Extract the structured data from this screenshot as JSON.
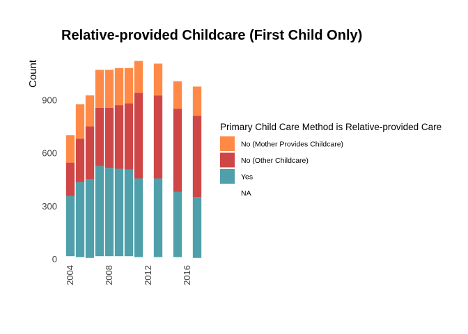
{
  "chart_data": {
    "type": "bar",
    "stacked": true,
    "title": "Relative-provided Childcare (First Child Only)",
    "xlabel": "",
    "ylabel": "Count",
    "x": [
      2004,
      2005,
      2006,
      2007,
      2008,
      2009,
      2010,
      2011,
      2012,
      2013,
      2014,
      2015,
      2016,
      2017
    ],
    "xticks": [
      2004,
      2008,
      2012,
      2016
    ],
    "yticks": [
      0,
      300,
      600,
      900
    ],
    "ylim": [
      0,
      1150
    ],
    "xlim": [
      2003.5,
      2017.5
    ],
    "grid": false,
    "legend_position": "right",
    "legend_title": "Primary Child Care Method is Relative-provided Care",
    "series": [
      {
        "name": "NA",
        "color": "#ffffff",
        "values": [
          15,
          10,
          5,
          15,
          15,
          15,
          15,
          10,
          null,
          10,
          null,
          10,
          null,
          5
        ]
      },
      {
        "name": "Yes",
        "color": "#4fa0ab",
        "values": [
          340,
          425,
          445,
          510,
          500,
          495,
          490,
          445,
          null,
          445,
          null,
          370,
          null,
          345
        ]
      },
      {
        "name": "No (Other Childcare)",
        "color": "#cf4647",
        "values": [
          190,
          245,
          300,
          330,
          340,
          360,
          375,
          485,
          null,
          470,
          null,
          470,
          null,
          460
        ]
      },
      {
        "name": "No (Mother Provides Childcare)",
        "color": "#ff8a47",
        "values": [
          155,
          195,
          175,
          215,
          215,
          210,
          200,
          180,
          null,
          180,
          null,
          155,
          null,
          165
        ]
      }
    ],
    "legend_order": [
      "No (Mother Provides Childcare)",
      "No (Other Childcare)",
      "Yes",
      "NA"
    ]
  }
}
